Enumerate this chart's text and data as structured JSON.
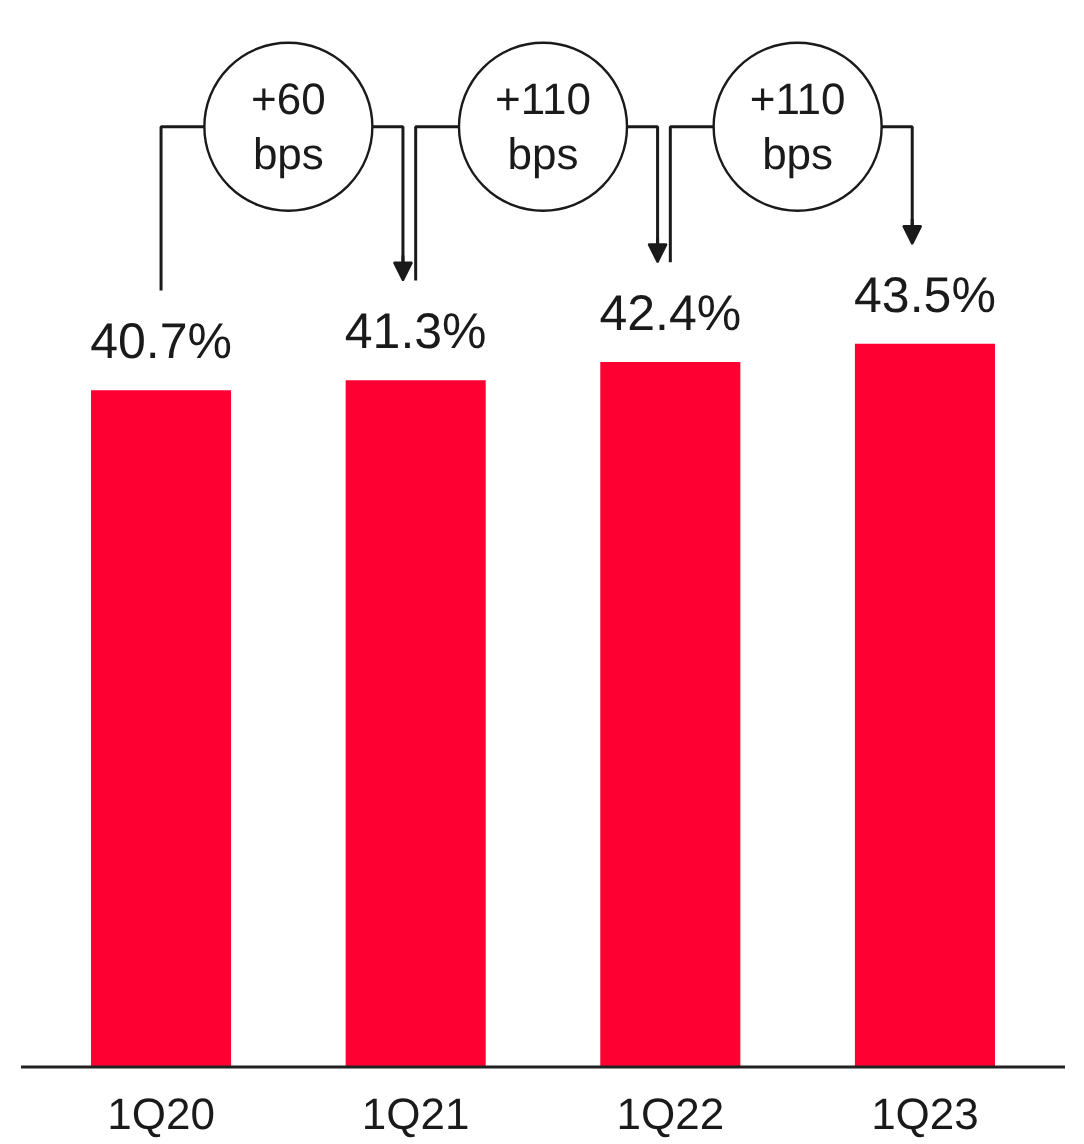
{
  "chart_data": {
    "type": "bar",
    "categories": [
      "1Q20",
      "1Q21",
      "1Q22",
      "1Q23"
    ],
    "values": [
      40.7,
      41.3,
      42.4,
      43.5
    ],
    "color": "#ff0033",
    "data_labels": true,
    "value_labels": [
      "40.7%",
      "41.3%",
      "42.4%",
      "43.5%"
    ],
    "grid": false,
    "annotations": [
      "+60\nbps",
      "+110\nbps",
      "+110\nbps"
    ]
  }
}
